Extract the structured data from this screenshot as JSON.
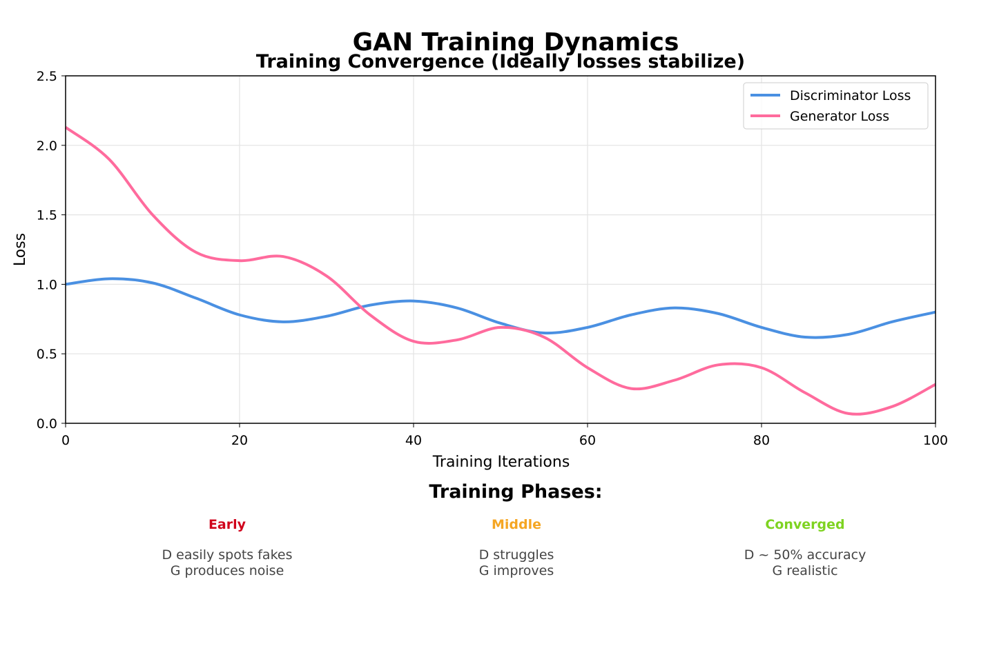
{
  "chart_data": {
    "type": "line",
    "suptitle": "GAN Training Dynamics",
    "title": "Training Convergence (Ideally losses stabilize)",
    "xlabel": "Training Iterations",
    "ylabel": "Loss",
    "xlim": [
      0,
      100
    ],
    "ylim": [
      0,
      2.5
    ],
    "xticks": [
      "0",
      "20",
      "40",
      "60",
      "80",
      "100"
    ],
    "yticks": [
      "0.0",
      "0.5",
      "1.0",
      "1.5",
      "2.0",
      "2.5"
    ],
    "grid": true,
    "legend_position": "top-right",
    "x": [
      0,
      5,
      10,
      15,
      20,
      25,
      30,
      35,
      40,
      45,
      50,
      55,
      60,
      65,
      70,
      75,
      80,
      85,
      90,
      95,
      100
    ],
    "series": [
      {
        "name": "Discriminator Loss",
        "color": "#4a90e2",
        "values": [
          1.0,
          1.04,
          1.01,
          0.9,
          0.78,
          0.73,
          0.77,
          0.85,
          0.88,
          0.83,
          0.72,
          0.65,
          0.69,
          0.78,
          0.83,
          0.79,
          0.69,
          0.62,
          0.64,
          0.73,
          0.8
        ]
      },
      {
        "name": "Generator Loss",
        "color": "#ff6b9d",
        "values": [
          2.13,
          1.9,
          1.5,
          1.23,
          1.17,
          1.2,
          1.06,
          0.78,
          0.59,
          0.6,
          0.69,
          0.62,
          0.4,
          0.25,
          0.31,
          0.42,
          0.4,
          0.22,
          0.07,
          0.12,
          0.28
        ]
      }
    ]
  },
  "phases": {
    "heading": "Training Phases:",
    "items": [
      {
        "name": "Early",
        "color": "#d0021b",
        "description": "D easily spots fakes\nG produces noise"
      },
      {
        "name": "Middle",
        "color": "#f5a623",
        "description": "D struggles\nG improves"
      },
      {
        "name": "Converged",
        "color": "#7ed321",
        "description": "D ~ 50% accuracy\nG realistic"
      }
    ]
  }
}
